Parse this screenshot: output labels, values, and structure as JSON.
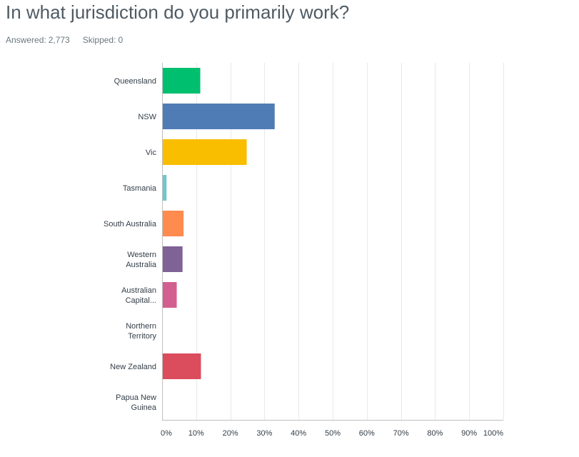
{
  "question": {
    "title": "In what jurisdiction do you primarily work?",
    "answered_label": "Answered:",
    "answered_value": "2,773",
    "skipped_label": "Skipped:",
    "skipped_value": "0"
  },
  "chart_data": {
    "type": "bar",
    "orientation": "horizontal",
    "categories": [
      [
        "Queensland"
      ],
      [
        "NSW"
      ],
      [
        "Vic"
      ],
      [
        "Tasmania"
      ],
      [
        "South Australia"
      ],
      [
        "Western",
        "Australia"
      ],
      [
        "Australian",
        "Capital..."
      ],
      [
        "Northern",
        "Territory"
      ],
      [
        "New Zealand"
      ],
      [
        "Papua New",
        "Guinea"
      ]
    ],
    "values": [
      11.2,
      33.0,
      24.8,
      1.3,
      6.3,
      6.0,
      4.3,
      0.2,
      11.4,
      0.0
    ],
    "colors": [
      "#00bf6f",
      "#507cb6",
      "#f9be00",
      "#6bc8cd",
      "#ff8b4f",
      "#7f6296",
      "#d25f90",
      "#a09b5c",
      "#db4c5d",
      "#c4c4c4"
    ],
    "xlim": [
      0,
      100
    ],
    "xticks": [
      0,
      10,
      20,
      30,
      40,
      50,
      60,
      70,
      80,
      90,
      100
    ],
    "xtick_labels": [
      "0%",
      "10%",
      "20%",
      "30%",
      "40%",
      "50%",
      "60%",
      "70%",
      "80%",
      "90%",
      "100%"
    ],
    "grid": true,
    "grid_color": "#e8e8e8",
    "axis_color": "#bfbfbf"
  }
}
